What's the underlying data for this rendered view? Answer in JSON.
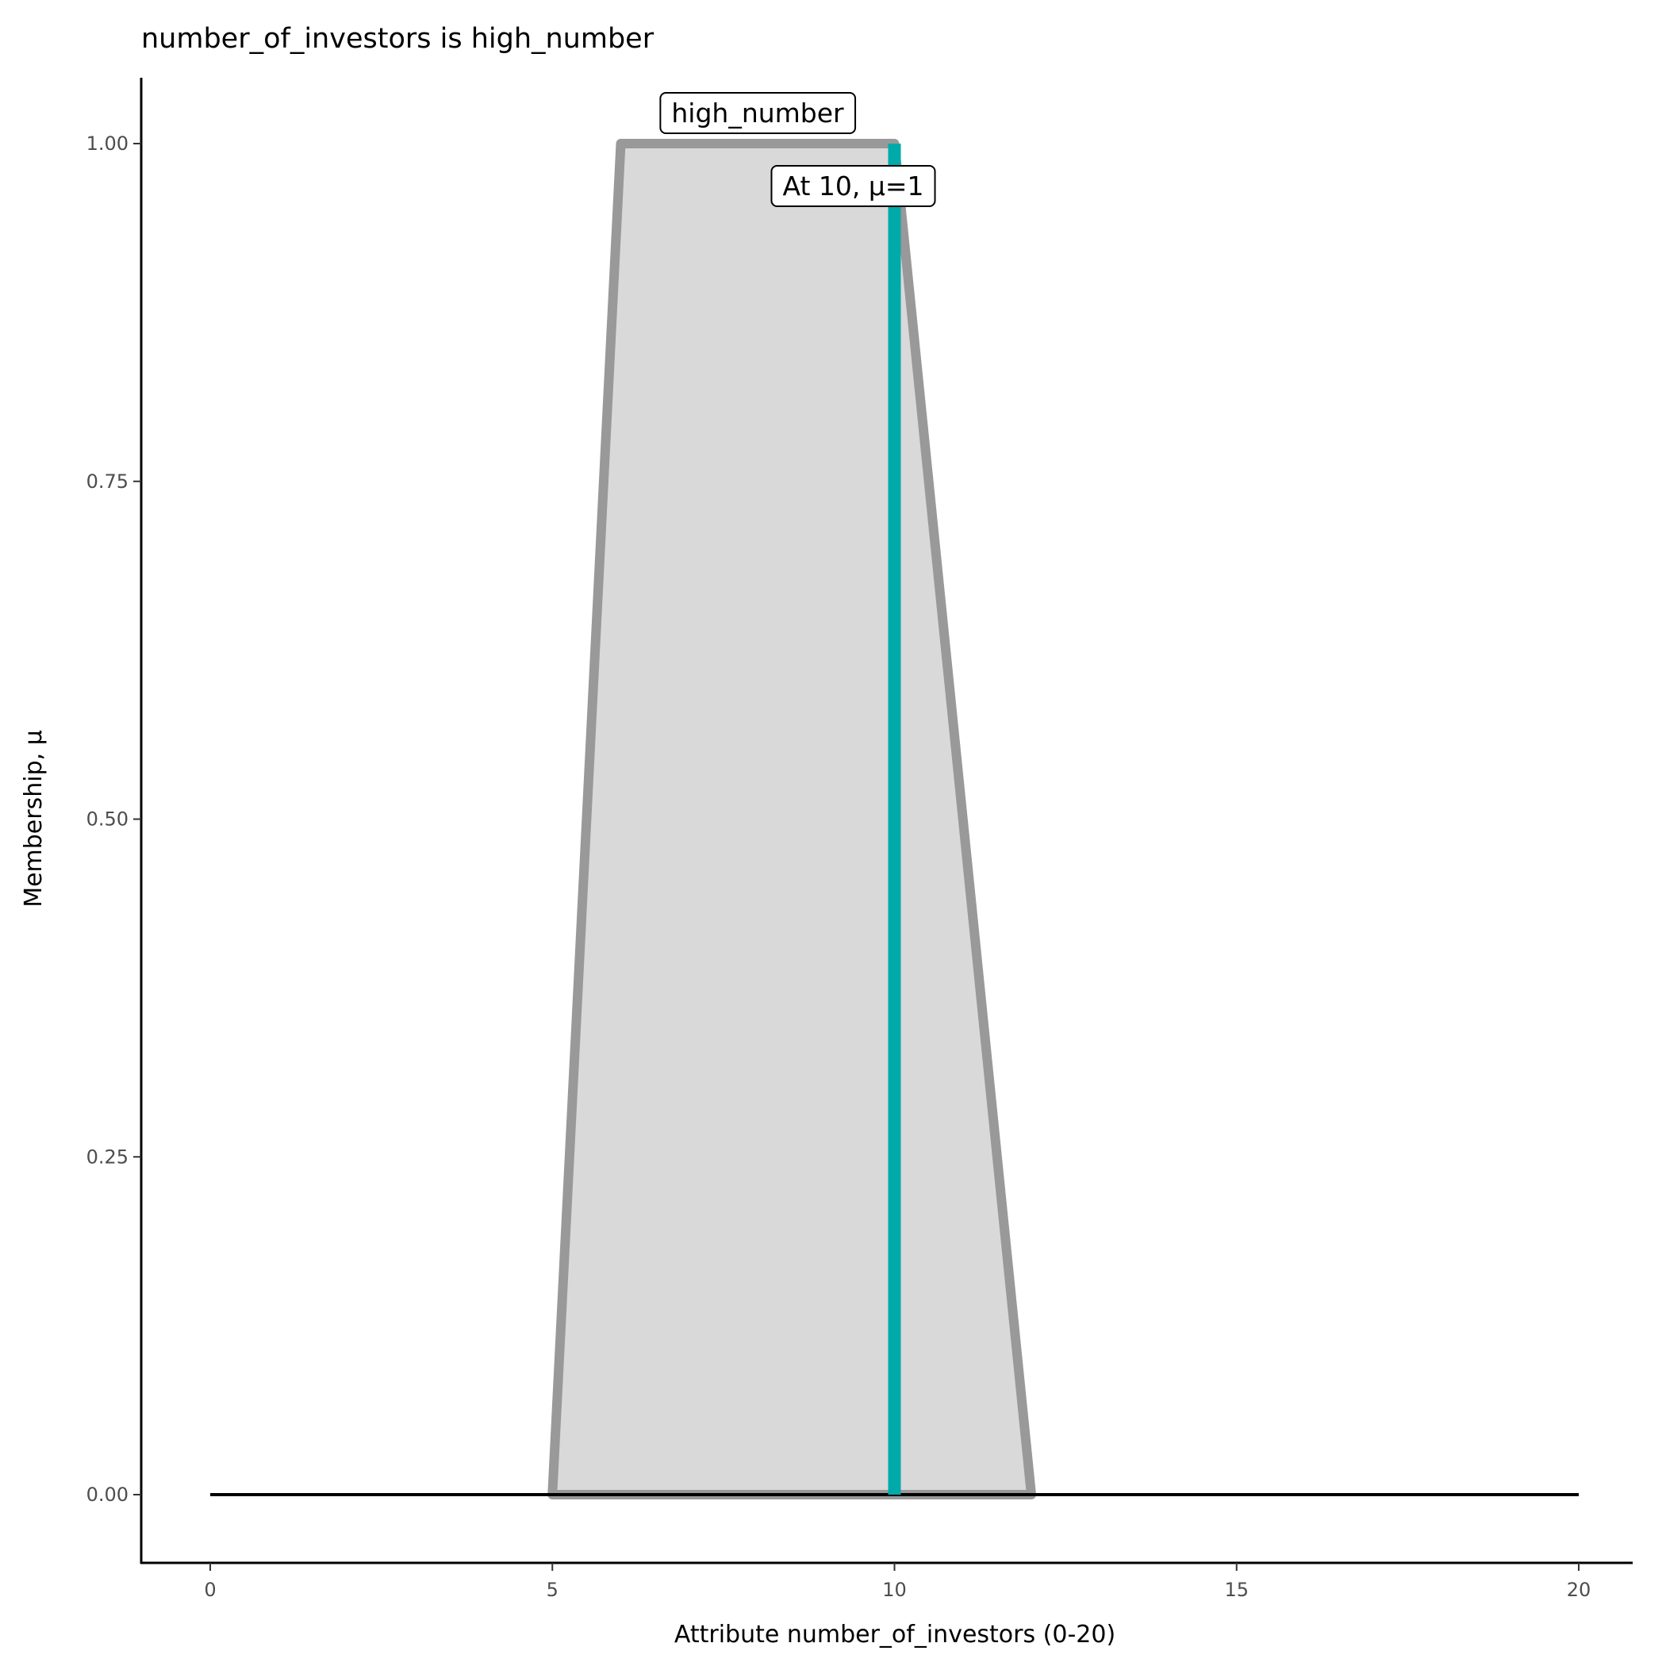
{
  "chart_data": {
    "type": "area",
    "title": "number_of_investors is high_number",
    "xlabel": "Attribute number_of_investors (0-20)",
    "ylabel": "Membership, μ",
    "xlim": [
      0,
      20
    ],
    "ylim": [
      0,
      1
    ],
    "x_ticks": [
      "0",
      "5",
      "10",
      "15",
      "20"
    ],
    "y_ticks": [
      "0.00",
      "0.25",
      "0.50",
      "0.75",
      "1.00"
    ],
    "grid": false,
    "series": [
      {
        "name": "high_number",
        "x": [
          5,
          6,
          10,
          12
        ],
        "y": [
          0,
          1,
          1,
          0
        ]
      }
    ],
    "baseline": {
      "x": [
        0,
        20
      ],
      "y": [
        0,
        0
      ]
    },
    "marker": {
      "x": 10,
      "mu": 1,
      "label": "At 10, μ=1"
    },
    "colors": {
      "fill": "#d9d9d9",
      "outline": "#999999",
      "marker": "#00aaaa"
    }
  }
}
